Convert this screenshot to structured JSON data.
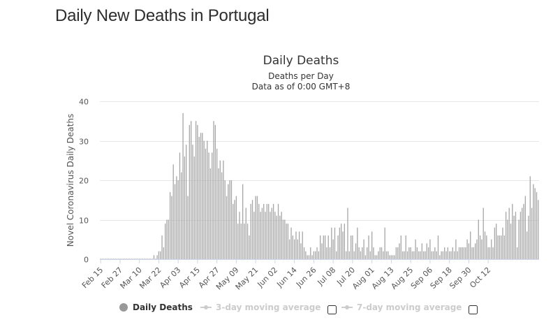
{
  "page": {
    "title": "Daily New Deaths in Portugal"
  },
  "chart_data": {
    "type": "bar",
    "title": "Daily Deaths",
    "subtitle_1": "Deaths per Day",
    "subtitle_2": "Data as of 0:00 GMT+8",
    "ylabel": "Novel Coronavirus Daily Deaths",
    "xlabel": "",
    "ylim": [
      0,
      40
    ],
    "yticks": [
      0,
      10,
      20,
      30,
      40
    ],
    "xtick_labels": [
      "Feb 15",
      "Feb 27",
      "Mar 10",
      "Mar 22",
      "Apr 03",
      "Apr 15",
      "Apr 27",
      "May 09",
      "May 21",
      "Jun 02",
      "Jun 14",
      "Jun 26",
      "Jul 08",
      "Jul 20",
      "Aug 01",
      "Aug 13",
      "Aug 25",
      "Sep 06",
      "Sep 18",
      "Sep 30",
      "Oct 12"
    ],
    "x_start": "Feb 15",
    "x_end": "Oct 17",
    "grid": true,
    "bar_color": "#a6a6a6",
    "series": [
      {
        "name": "Daily Deaths",
        "values": [
          0,
          0,
          0,
          0,
          0,
          0,
          0,
          0,
          0,
          0,
          0,
          0,
          0,
          0,
          0,
          0,
          0,
          0,
          0,
          0,
          0,
          0,
          0,
          0,
          0,
          0,
          0,
          0,
          0,
          0,
          0,
          0,
          0,
          1,
          0,
          1,
          2,
          2,
          6,
          3,
          9,
          10,
          10,
          17,
          16,
          24,
          19,
          21,
          20,
          27,
          22,
          37,
          26,
          29,
          16,
          34,
          35,
          29,
          26,
          35,
          34,
          31,
          32,
          32,
          30,
          28,
          30,
          27,
          23,
          27,
          35,
          34,
          28,
          23,
          25,
          22,
          25,
          20,
          16,
          19,
          20,
          20,
          14,
          15,
          16,
          9,
          12,
          9,
          19,
          9,
          13,
          9,
          6,
          14,
          15,
          12,
          16,
          16,
          14,
          12,
          13,
          14,
          12,
          14,
          14,
          12,
          13,
          14,
          12,
          11,
          14,
          11,
          12,
          10,
          10,
          9,
          9,
          5,
          8,
          6,
          5,
          7,
          5,
          7,
          4,
          7,
          3,
          2,
          1,
          1,
          3,
          1,
          2,
          2,
          3,
          2,
          6,
          4,
          6,
          6,
          3,
          6,
          3,
          8,
          5,
          8,
          2,
          6,
          8,
          9,
          7,
          9,
          2,
          13,
          2,
          6,
          6,
          2,
          4,
          8,
          3,
          2,
          3,
          5,
          1,
          3,
          6,
          2,
          7,
          3,
          1,
          1,
          2,
          3,
          3,
          2,
          8,
          2,
          2,
          1,
          1,
          1,
          1,
          3,
          3,
          4,
          6,
          2,
          2,
          6,
          2,
          3,
          3,
          2,
          2,
          5,
          3,
          2,
          2,
          4,
          2,
          2,
          4,
          3,
          5,
          2,
          2,
          3,
          2,
          6,
          1,
          2,
          2,
          3,
          2,
          3,
          2,
          2,
          3,
          2,
          5,
          2,
          3,
          3,
          3,
          3,
          3,
          5,
          4,
          7,
          3,
          3,
          4,
          5,
          10,
          6,
          5,
          13,
          7,
          6,
          3,
          3,
          5,
          3,
          8,
          9,
          6,
          6,
          6,
          8,
          6,
          12,
          10,
          13,
          9,
          14,
          11,
          12,
          3,
          10,
          12,
          13,
          14,
          16,
          7,
          11,
          21,
          13,
          19,
          18,
          17,
          15
        ]
      }
    ],
    "legend": {
      "placement": "bottom-center",
      "items": [
        {
          "label": "Daily Deaths",
          "active": true,
          "color": "#999999"
        },
        {
          "label": "3-day moving average",
          "active": false,
          "color": "#cccccc"
        },
        {
          "label": "7-day moving average",
          "active": false,
          "color": "#cccccc"
        }
      ]
    }
  }
}
